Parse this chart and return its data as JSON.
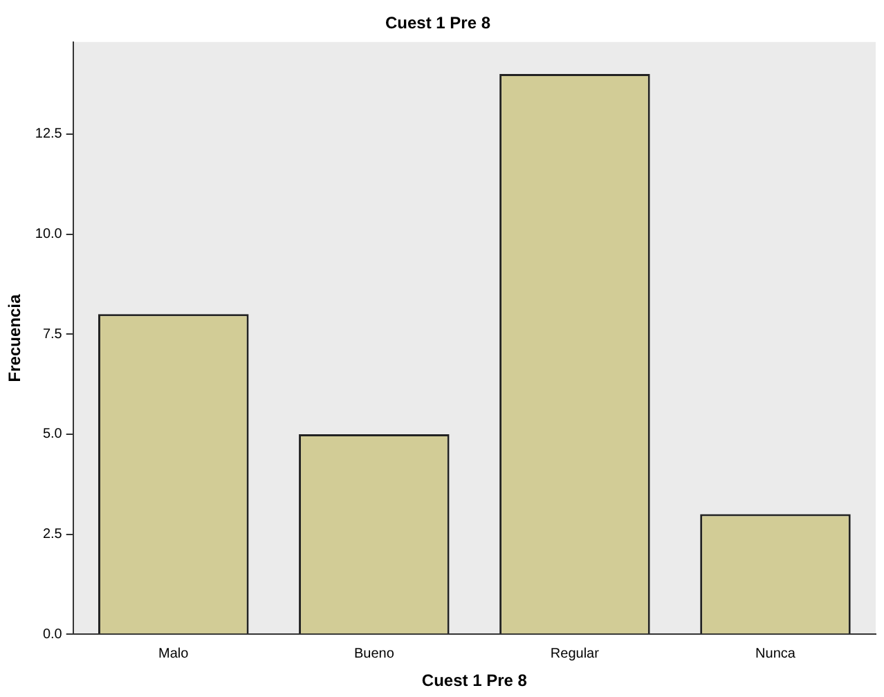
{
  "chart_data": {
    "type": "bar",
    "title": "Cuest 1 Pre 8",
    "xlabel": "Cuest 1 Pre 8",
    "ylabel": "Frecuencia",
    "categories": [
      "Malo",
      "Bueno",
      "Regular",
      "Nunca"
    ],
    "values": [
      8,
      5,
      14,
      3
    ],
    "color": "#d2cc96",
    "ylim": [
      0,
      14.8
    ],
    "yticks": [
      {
        "value": 0,
        "label": "0.0"
      },
      {
        "value": 2.5,
        "label": "2.5"
      },
      {
        "value": 5,
        "label": "5.0"
      },
      {
        "value": 7.5,
        "label": "7.5"
      },
      {
        "value": 10,
        "label": "10.0"
      },
      {
        "value": 12.5,
        "label": "12.5"
      }
    ],
    "grid": false,
    "legend": false
  }
}
